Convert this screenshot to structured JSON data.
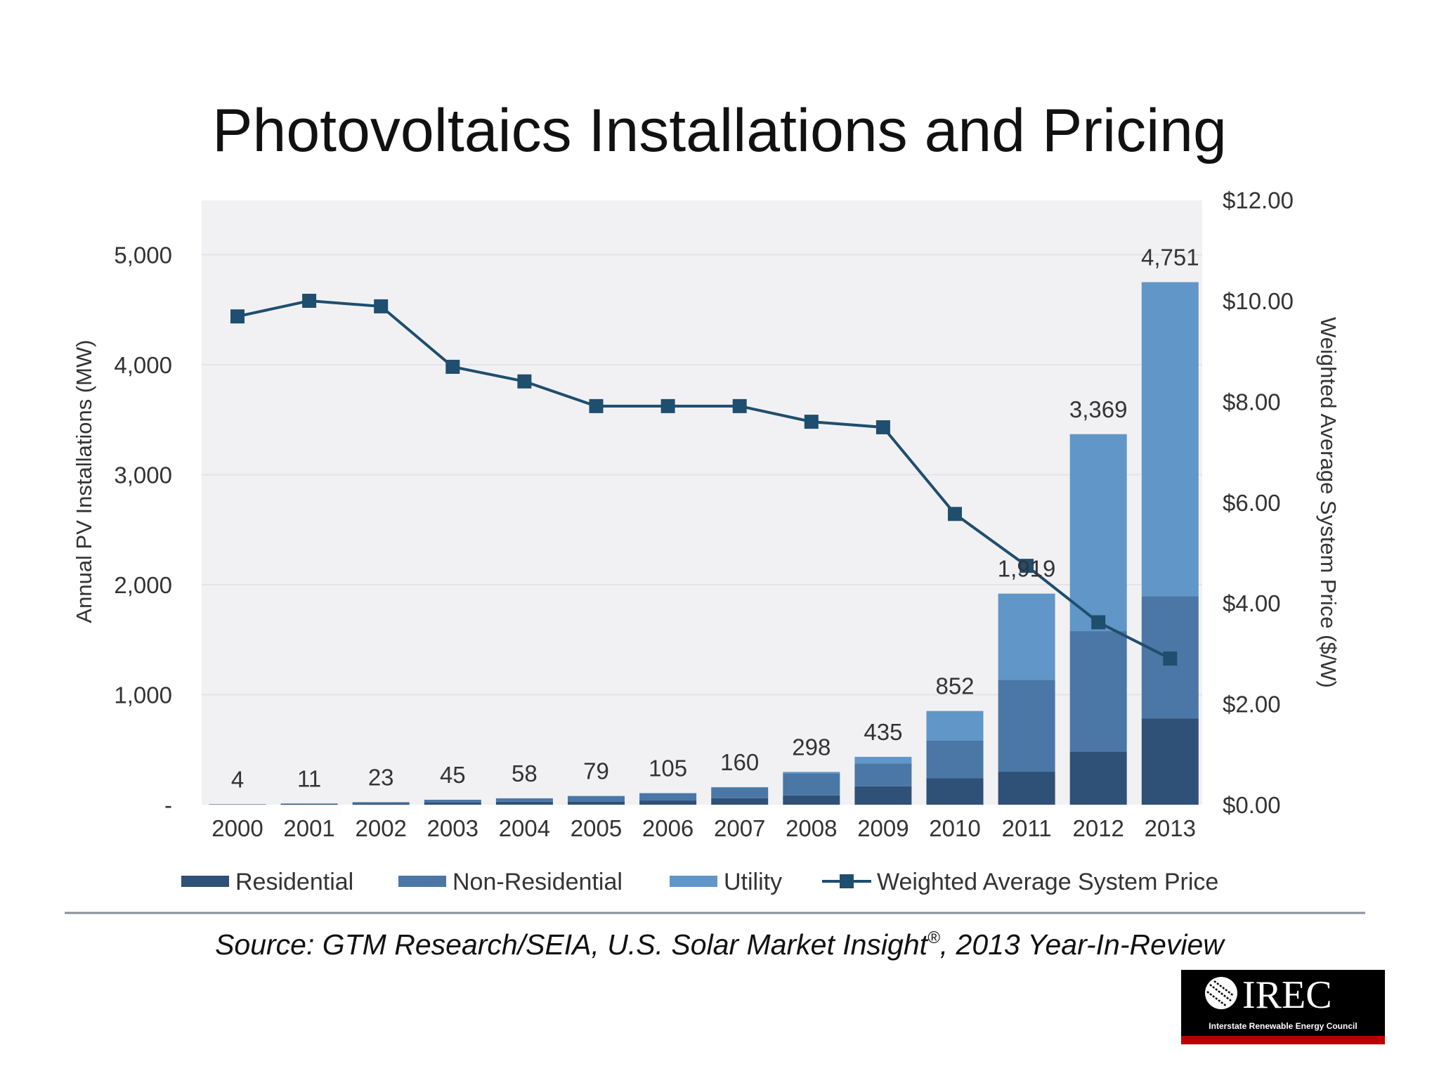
{
  "title": "Photovoltaics Installations and Pricing",
  "source": {
    "prefix": "Source: GTM Research/SEIA, U.S. Solar Market Insight",
    "sup": "®",
    "suffix": ", 2013 Year-In-Review"
  },
  "logo": {
    "name": "IREC",
    "subtitle": "Interstate Renewable Energy Council"
  },
  "chart_data": {
    "type": "bar",
    "stacked": true,
    "title": "Photovoltaics Installations and Pricing",
    "ylabel": "Annual PV Installations (MW)",
    "y2label": "Weighted Average System Price ($/W)",
    "ylim": [
      0,
      5500
    ],
    "y2lim": [
      0,
      12
    ],
    "yticks": [
      "-",
      "1,000",
      "2,000",
      "3,000",
      "4,000",
      "5,000"
    ],
    "ytick_values": [
      0,
      1000,
      2000,
      3000,
      4000,
      5000
    ],
    "y2ticks": [
      "$0.00",
      "$2.00",
      "$4.00",
      "$6.00",
      "$8.00",
      "$10.00",
      "$12.00"
    ],
    "y2tick_values": [
      0,
      2,
      4,
      6,
      8,
      10,
      12
    ],
    "grid": true,
    "legend_position": "bottom",
    "categories": [
      "2000",
      "2001",
      "2002",
      "2003",
      "2004",
      "2005",
      "2006",
      "2007",
      "2008",
      "2009",
      "2010",
      "2011",
      "2012",
      "2013"
    ],
    "totals": [
      4,
      11,
      23,
      45,
      58,
      79,
      105,
      160,
      298,
      435,
      852,
      1919,
      3369,
      4751
    ],
    "total_labels": [
      "4",
      "11",
      "23",
      "45",
      "58",
      "79",
      "105",
      "160",
      "298",
      "435",
      "852",
      "1,919",
      "3,369",
      "4,751"
    ],
    "series": [
      {
        "name": "Residential",
        "color": "#2f5077",
        "values": [
          3,
          7,
          12,
          19,
          27,
          28,
          38,
          58,
          84,
          167,
          242,
          300,
          484,
          785
        ]
      },
      {
        "name": "Non-Residential",
        "color": "#4a77a6",
        "values": [
          1,
          4,
          11,
          26,
          31,
          51,
          67,
          98,
          200,
          209,
          342,
          835,
          1094,
          1110
        ]
      },
      {
        "name": "Utility",
        "color": "#6196c8",
        "values": [
          0,
          0,
          0,
          0,
          0,
          0,
          0,
          4,
          14,
          59,
          268,
          784,
          1791,
          2856
        ]
      }
    ],
    "line_series": {
      "name": "Weighted Average System Price",
      "color": "#1f4e6e",
      "axis": "right",
      "values": [
        9.69,
        10.0,
        9.89,
        8.69,
        8.4,
        7.91,
        7.91,
        7.91,
        7.6,
        7.49,
        5.77,
        4.74,
        3.62,
        2.9
      ]
    }
  }
}
